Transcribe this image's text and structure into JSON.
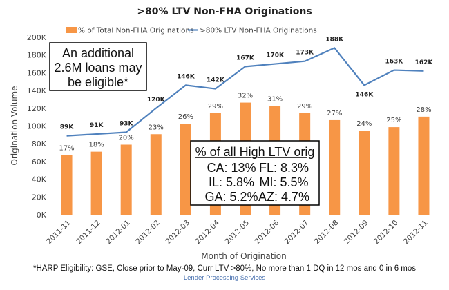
{
  "chart_data": {
    "type": "bar",
    "title": ">80% LTV Non-FHA Originations",
    "xlabel": "Month of Origination",
    "ylabel": "Origination Volume",
    "ylim": [
      0,
      200000
    ],
    "yticks": [
      "0K",
      "20K",
      "40K",
      "60K",
      "80K",
      "100K",
      "120K",
      "140K",
      "160K",
      "180K",
      "200K"
    ],
    "legend_position": "top",
    "categories": [
      "2011-11",
      "2011-12",
      "2012-01",
      "2012-02",
      "2012-03",
      "2012-04",
      "2012-05",
      "2012-06",
      "2012-07",
      "2012-08",
      "2012-09",
      "2012-10",
      "2012-11"
    ],
    "series": [
      {
        "name": "% of Total Non-FHA Originations",
        "type": "bar",
        "color": "#F79646",
        "values": [
          17,
          18,
          20,
          23,
          26,
          29,
          32,
          31,
          29,
          27,
          24,
          25,
          28
        ],
        "labels": [
          "17%",
          "18%",
          "20%",
          "23%",
          "26%",
          "29%",
          "32%",
          "31%",
          "29%",
          "27%",
          "24%",
          "25%",
          "28%"
        ],
        "axis_note": "bar heights share the left axis scale (≈4K per percentage point)"
      },
      {
        "name": ">80% LTV Non-FHA Originations",
        "type": "line",
        "color": "#4F81BD",
        "values": [
          89000,
          91000,
          93000,
          120000,
          146000,
          142000,
          167000,
          170000,
          173000,
          188000,
          146000,
          163000,
          162000
        ],
        "labels": [
          "89K",
          "91K",
          "93K",
          "120K",
          "146K",
          "142K",
          "167K",
          "170K",
          "173K",
          "188K",
          "146K",
          "163K",
          "162K"
        ]
      }
    ],
    "annotations": [
      {
        "id": "eligible-box",
        "lines": [
          "An additional",
          "2.6M loans may",
          "be eligible*"
        ]
      },
      {
        "id": "state-box",
        "heading": "% of all High LTV orig",
        "rows": [
          [
            "CA: 13%",
            "FL: 8.3%"
          ],
          [
            "IL: 5.8%",
            "MI: 5.5%"
          ],
          [
            "GA: 5.2%",
            "AZ: 4.7%"
          ]
        ]
      }
    ]
  },
  "footnote": "*HARP Eligibility: GSE, Close prior to May-09, Curr LTV >80%, No more than 1 DQ in 12 mos and 0 in 6 mos",
  "source": "Lender Processing Services"
}
